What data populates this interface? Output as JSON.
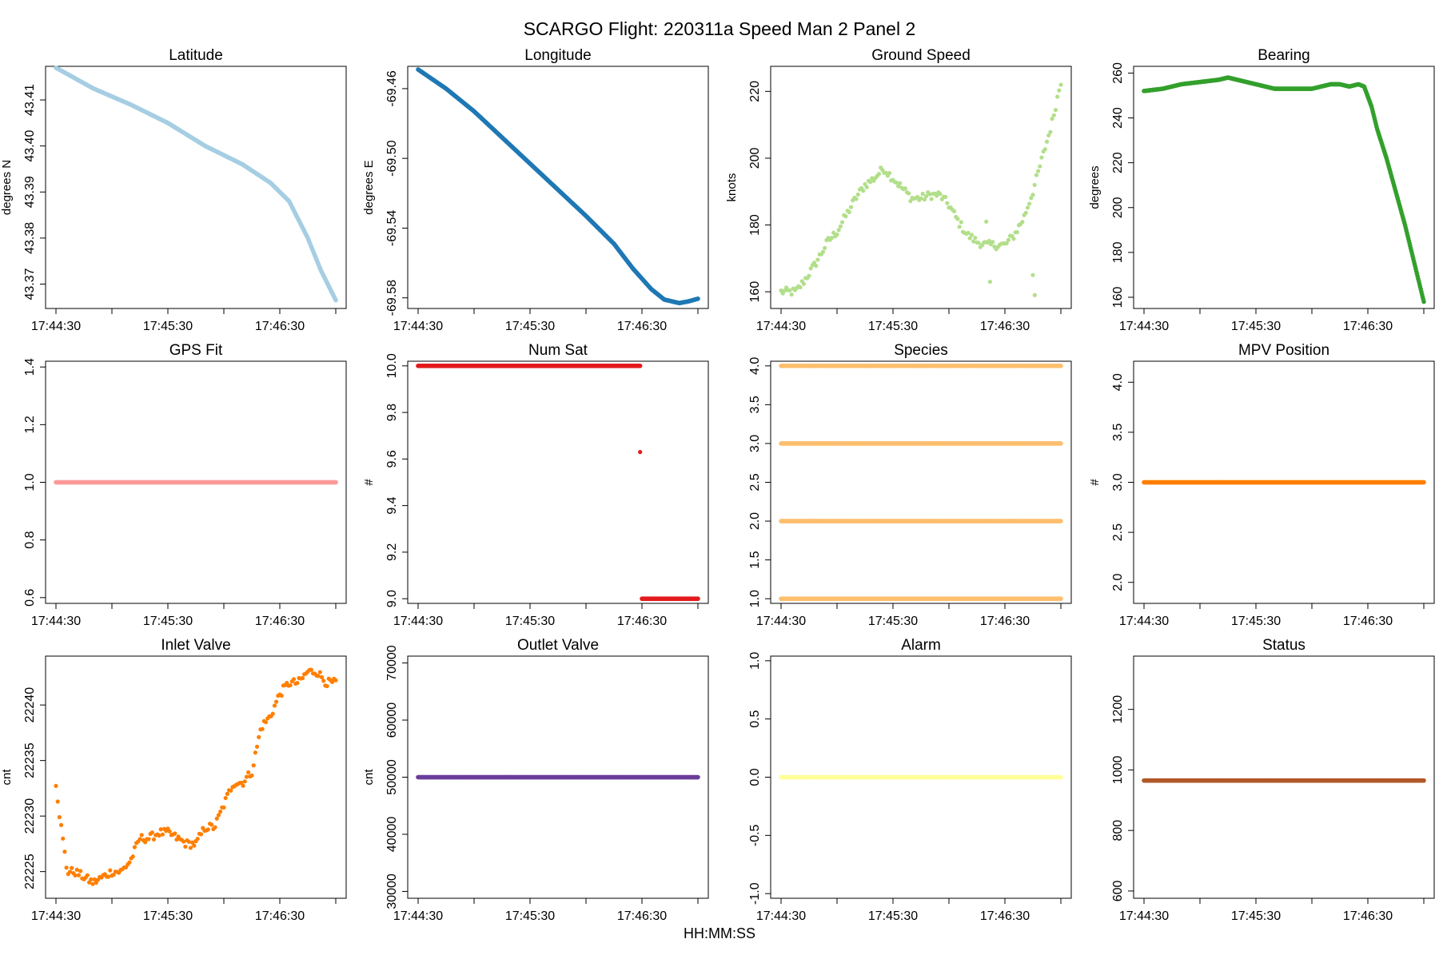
{
  "figure": {
    "title": "SCARGO Flight: 220311a  Speed Man 2 Panel 2",
    "xlabel": "HH:MM:SS"
  },
  "chart_data": [
    {
      "type": "scatter",
      "title": "Latitude",
      "ylabel": "degrees N",
      "color": "#a6cee3",
      "xlim": [
        0,
        150
      ],
      "ylim": [
        43.3647,
        43.4173
      ],
      "yticks": [
        43.37,
        43.38,
        43.39,
        43.4,
        43.41
      ],
      "ytick_labels": [
        "43.37",
        "43.38",
        "43.39",
        "43.40",
        "43.41"
      ],
      "xticks": [
        0,
        60,
        120
      ],
      "xtick_labels": [
        "17:44:30",
        "17:45:30",
        "17:46:30"
      ],
      "series": [
        {
          "name": "Latitude",
          "points": [
            [
              0,
              43.417
            ],
            [
              20,
              43.4125
            ],
            [
              40,
              43.409
            ],
            [
              60,
              43.405
            ],
            [
              80,
              43.4
            ],
            [
              100,
              43.396
            ],
            [
              115,
              43.392
            ],
            [
              125,
              43.388
            ],
            [
              135,
              43.38
            ],
            [
              142,
              43.373
            ],
            [
              150,
              43.3665
            ]
          ]
        }
      ]
    },
    {
      "type": "scatter",
      "title": "Longitude",
      "ylabel": "degrees E",
      "color": "#1f78b4",
      "xlim": [
        0,
        150
      ],
      "ylim": [
        -69.5861,
        -69.4472
      ],
      "yticks": [
        -69.58,
        -69.54,
        -69.5,
        -69.46
      ],
      "ytick_labels": [
        "-69.58",
        "-69.54",
        "-69.50",
        "-69.46"
      ],
      "xticks": [
        0,
        60,
        120
      ],
      "xtick_labels": [
        "17:44:30",
        "17:45:30",
        "17:46:30"
      ],
      "series": [
        {
          "name": "Longitude",
          "points": [
            [
              0,
              -69.449
            ],
            [
              15,
              -69.46
            ],
            [
              30,
              -69.473
            ],
            [
              45,
              -69.488
            ],
            [
              60,
              -69.503
            ],
            [
              75,
              -69.518
            ],
            [
              90,
              -69.533
            ],
            [
              105,
              -69.549
            ],
            [
              115,
              -69.563
            ],
            [
              125,
              -69.575
            ],
            [
              132,
              -69.581
            ],
            [
              140,
              -69.583
            ],
            [
              145,
              -69.582
            ],
            [
              150,
              -69.5805
            ]
          ]
        }
      ]
    },
    {
      "type": "scatter",
      "title": "Ground Speed",
      "ylabel": "knots",
      "color": "#b2df8a",
      "xlim": [
        0,
        150
      ],
      "ylim": [
        155,
        227.5
      ],
      "yticks": [
        160,
        180,
        200,
        220
      ],
      "ytick_labels": [
        "160",
        "180",
        "200",
        "220"
      ],
      "xticks": [
        0,
        60,
        120
      ],
      "xtick_labels": [
        "17:44:30",
        "17:45:30",
        "17:46:30"
      ],
      "series": [
        {
          "name": "Ground Speed",
          "points": [
            [
              0,
              160
            ],
            [
              8,
              160
            ],
            [
              12,
              163
            ],
            [
              18,
              168
            ],
            [
              25,
              175
            ],
            [
              30,
              178
            ],
            [
              35,
              183
            ],
            [
              40,
              188
            ],
            [
              45,
              192
            ],
            [
              50,
              194
            ],
            [
              55,
              197
            ],
            [
              60,
              194
            ],
            [
              65,
              191
            ],
            [
              70,
              188
            ],
            [
              75,
              188
            ],
            [
              80,
              189
            ],
            [
              85,
              189
            ],
            [
              90,
              186
            ],
            [
              95,
              181
            ],
            [
              100,
              177
            ],
            [
              105,
              175
            ],
            [
              110,
              174
            ],
            [
              115,
              174
            ],
            [
              120,
              174
            ],
            [
              125,
              177
            ],
            [
              130,
              182
            ],
            [
              135,
              190
            ],
            [
              140,
              200
            ],
            [
              145,
              210
            ],
            [
              150,
              223
            ]
          ]
        }
      ],
      "outliers": [
        [
          112,
          163
        ],
        [
          135,
          165
        ],
        [
          136,
          159
        ],
        [
          110,
          181
        ]
      ]
    },
    {
      "type": "scatter",
      "title": "Bearing",
      "ylabel": "degrees",
      "color": "#33a02c",
      "xlim": [
        0,
        150
      ],
      "ylim": [
        155,
        263
      ],
      "yticks": [
        160,
        180,
        200,
        220,
        240,
        260
      ],
      "ytick_labels": [
        "160",
        "180",
        "200",
        "220",
        "240",
        "260"
      ],
      "xticks": [
        0,
        60,
        120
      ],
      "xtick_labels": [
        "17:44:30",
        "17:45:30",
        "17:46:30"
      ],
      "series": [
        {
          "name": "Bearing",
          "points": [
            [
              0,
              252
            ],
            [
              10,
              253
            ],
            [
              20,
              255
            ],
            [
              30,
              256
            ],
            [
              40,
              257
            ],
            [
              45,
              258
            ],
            [
              50,
              257
            ],
            [
              60,
              255
            ],
            [
              70,
              253
            ],
            [
              80,
              253
            ],
            [
              90,
              253
            ],
            [
              100,
              255
            ],
            [
              105,
              255
            ],
            [
              110,
              254
            ],
            [
              115,
              255
            ],
            [
              118,
              254
            ],
            [
              122,
              245
            ],
            [
              125,
              235
            ],
            [
              130,
              222
            ],
            [
              135,
              207
            ],
            [
              140,
              192
            ],
            [
              145,
              175
            ],
            [
              150,
              158
            ]
          ]
        }
      ]
    },
    {
      "type": "scatter",
      "title": "GPS Fit",
      "ylabel": "",
      "color": "#fb9a99",
      "xlim": [
        0,
        150
      ],
      "ylim": [
        0.58,
        1.42
      ],
      "yticks": [
        0.6,
        0.8,
        1.0,
        1.2,
        1.4
      ],
      "ytick_labels": [
        "0.6",
        "0.8",
        "1.0",
        "1.2",
        "1.4"
      ],
      "xticks": [
        0,
        60,
        120
      ],
      "xtick_labels": [
        "17:44:30",
        "17:45:30",
        "17:46:30"
      ],
      "series": [
        {
          "name": "GPS Fit",
          "points": [
            [
              0,
              1.0
            ],
            [
              150,
              1.0
            ]
          ]
        }
      ]
    },
    {
      "type": "scatter",
      "title": "Num Sat",
      "ylabel": "#",
      "color": "#e31a1c",
      "xlim": [
        0,
        150
      ],
      "ylim": [
        8.98,
        10.02
      ],
      "yticks": [
        9.0,
        9.2,
        9.4,
        9.6,
        9.8,
        10.0
      ],
      "ytick_labels": [
        "9.0",
        "9.2",
        "9.4",
        "9.6",
        "9.8",
        "10.0"
      ],
      "xticks": [
        0,
        60,
        120
      ],
      "xtick_labels": [
        "17:44:30",
        "17:45:30",
        "17:46:30"
      ],
      "series": [
        {
          "name": "Num Sat a",
          "points": [
            [
              0,
              10.0
            ],
            [
              119,
              10.0
            ]
          ]
        },
        {
          "name": "Num Sat b",
          "points": [
            [
              120,
              9.0
            ],
            [
              150,
              9.0
            ]
          ]
        }
      ],
      "outliers": [
        [
          119,
          9.63
        ]
      ]
    },
    {
      "type": "scatter",
      "title": "Species",
      "ylabel": "",
      "color": "#fdbf6f",
      "xlim": [
        0,
        150
      ],
      "ylim": [
        0.94,
        4.06
      ],
      "yticks": [
        1.0,
        1.5,
        2.0,
        2.5,
        3.0,
        3.5,
        4.0
      ],
      "ytick_labels": [
        "1.0",
        "1.5",
        "2.0",
        "2.5",
        "3.0",
        "3.5",
        "4.0"
      ],
      "xticks": [
        0,
        60,
        120
      ],
      "xtick_labels": [
        "17:44:30",
        "17:45:30",
        "17:46:30"
      ],
      "series": [
        {
          "name": "Species 1",
          "points": [
            [
              0,
              1.0
            ],
            [
              150,
              1.0
            ]
          ]
        },
        {
          "name": "Species 2",
          "points": [
            [
              0,
              2.0
            ],
            [
              150,
              2.0
            ]
          ]
        },
        {
          "name": "Species 3",
          "points": [
            [
              0,
              3.0
            ],
            [
              150,
              3.0
            ]
          ]
        },
        {
          "name": "Species 4",
          "points": [
            [
              0,
              4.0
            ],
            [
              150,
              4.0
            ]
          ]
        }
      ]
    },
    {
      "type": "scatter",
      "title": "MPV Position",
      "ylabel": "#",
      "color": "#ff7f00",
      "xlim": [
        0,
        150
      ],
      "ylim": [
        1.79,
        4.21
      ],
      "yticks": [
        2.0,
        2.5,
        3.0,
        3.5,
        4.0
      ],
      "ytick_labels": [
        "2.0",
        "2.5",
        "3.0",
        "3.5",
        "4.0"
      ],
      "xticks": [
        0,
        60,
        120
      ],
      "xtick_labels": [
        "17:44:30",
        "17:45:30",
        "17:46:30"
      ],
      "series": [
        {
          "name": "MPV Position",
          "points": [
            [
              0,
              3.0
            ],
            [
              150,
              3.0
            ]
          ]
        }
      ]
    },
    {
      "type": "scatter",
      "title": "Inlet Valve",
      "ylabel": "cnt",
      "color": "#ff7f00",
      "xlim": [
        0,
        150
      ],
      "ylim": [
        22222.6,
        22244.4
      ],
      "yticks": [
        22225,
        22230,
        22235,
        22240
      ],
      "ytick_labels": [
        "22225",
        "22230",
        "22235",
        "22240"
      ],
      "xticks": [
        0,
        60,
        120
      ],
      "xtick_labels": [
        "17:44:30",
        "17:45:30",
        "17:46:30"
      ],
      "series": [
        {
          "name": "Inlet Valve",
          "points": [
            [
              0,
              22233
            ],
            [
              2,
              22230
            ],
            [
              4,
              22227.5
            ],
            [
              6,
              22225
            ],
            [
              10,
              22225
            ],
            [
              15,
              22224.5
            ],
            [
              20,
              22224
            ],
            [
              25,
              22224.5
            ],
            [
              30,
              22225
            ],
            [
              35,
              22225
            ],
            [
              40,
              22226
            ],
            [
              45,
              22228
            ],
            [
              50,
              22228
            ],
            [
              55,
              22228.5
            ],
            [
              60,
              22228.5
            ],
            [
              65,
              22228
            ],
            [
              70,
              22227.5
            ],
            [
              75,
              22227.5
            ],
            [
              80,
              22229
            ],
            [
              85,
              22229
            ],
            [
              90,
              22231
            ],
            [
              95,
              22233
            ],
            [
              100,
              22233
            ],
            [
              105,
              22234
            ],
            [
              110,
              22238
            ],
            [
              115,
              22239
            ],
            [
              120,
              22241
            ],
            [
              125,
              22242
            ],
            [
              130,
              22242
            ],
            [
              135,
              22243
            ],
            [
              140,
              22243
            ],
            [
              145,
              22242
            ],
            [
              150,
              22242
            ]
          ]
        }
      ]
    },
    {
      "type": "scatter",
      "title": "Outlet Valve",
      "ylabel": "cnt",
      "color": "#6a3d9a",
      "xlim": [
        0,
        150
      ],
      "ylim": [
        28800,
        71200
      ],
      "yticks": [
        30000,
        40000,
        50000,
        60000,
        70000
      ],
      "ytick_labels": [
        "30000",
        "40000",
        "50000",
        "60000",
        "70000"
      ],
      "xticks": [
        0,
        60,
        120
      ],
      "xtick_labels": [
        "17:44:30",
        "17:45:30",
        "17:46:30"
      ],
      "series": [
        {
          "name": "Outlet Valve",
          "points": [
            [
              0,
              50000
            ],
            [
              150,
              50000
            ]
          ]
        }
      ]
    },
    {
      "type": "scatter",
      "title": "Alarm",
      "ylabel": "",
      "color": "#ffff99",
      "xlim": [
        0,
        150
      ],
      "ylim": [
        -1.04,
        1.04
      ],
      "yticks": [
        -1.0,
        -0.5,
        0.0,
        0.5,
        1.0
      ],
      "ytick_labels": [
        "-1.0",
        "-0.5",
        "0.0",
        "0.5",
        "1.0"
      ],
      "xticks": [
        0,
        60,
        120
      ],
      "xtick_labels": [
        "17:44:30",
        "17:45:30",
        "17:46:30"
      ],
      "series": [
        {
          "name": "Alarm",
          "points": [
            [
              0,
              0.0
            ],
            [
              150,
              0.0
            ]
          ]
        }
      ]
    },
    {
      "type": "scatter",
      "title": "Status",
      "ylabel": "",
      "color": "#b15928",
      "xlim": [
        0,
        150
      ],
      "ylim": [
        576,
        1376
      ],
      "yticks": [
        600,
        800,
        1000,
        1200
      ],
      "ytick_labels": [
        "600",
        "800",
        "1000",
        "1200"
      ],
      "xticks": [
        0,
        60,
        120
      ],
      "xtick_labels": [
        "17:44:30",
        "17:45:30",
        "17:46:30"
      ],
      "series": [
        {
          "name": "Status",
          "points": [
            [
              0,
              965
            ],
            [
              150,
              965
            ]
          ]
        }
      ]
    }
  ]
}
